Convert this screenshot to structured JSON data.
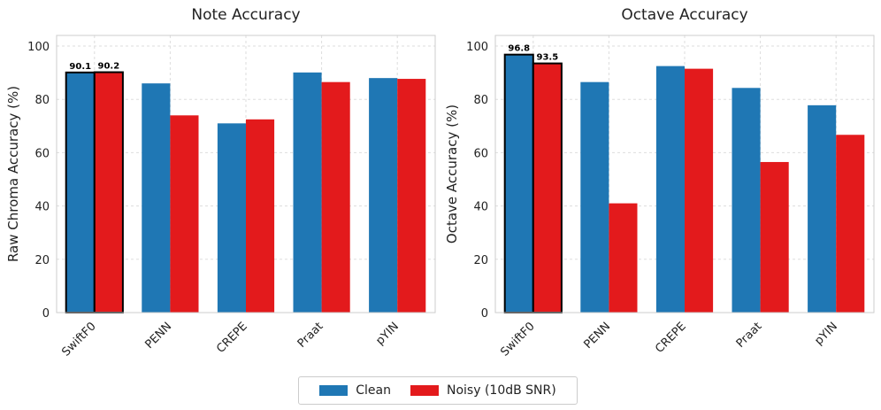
{
  "colors": {
    "clean": "#1f77b4",
    "noisy": "#e31a1c",
    "grid": "#dddddd",
    "frame": "#cccccc",
    "highlight": "#000000"
  },
  "legend": {
    "placement": "bottom-center",
    "clean_label": "Clean",
    "noisy_label": "Noisy (10dB SNR)"
  },
  "chart_data": [
    {
      "type": "bar",
      "title": "Note Accuracy",
      "xlabel": "",
      "ylabel": "Raw Chroma Accuracy (%)",
      "ylim": [
        0,
        104
      ],
      "yticks": [
        0,
        20,
        40,
        60,
        80,
        100
      ],
      "grid": true,
      "categories": [
        "SwiftF0",
        "PENN",
        "CREPE",
        "Praat",
        "pYIN"
      ],
      "highlighted_category": "SwiftF0",
      "series": [
        {
          "name": "Clean",
          "values": [
            90.1,
            86.0,
            71.0,
            90.1,
            88.0
          ]
        },
        {
          "name": "Noisy (10dB SNR)",
          "values": [
            90.2,
            74.0,
            72.5,
            86.5,
            87.7
          ]
        }
      ],
      "data_labels": [
        {
          "category": "SwiftF0",
          "series": "Clean",
          "text": "90.1"
        },
        {
          "category": "SwiftF0",
          "series": "Noisy (10dB SNR)",
          "text": "90.2"
        }
      ]
    },
    {
      "type": "bar",
      "title": "Octave Accuracy",
      "xlabel": "",
      "ylabel": "Octave Accuracy (%)",
      "ylim": [
        0,
        104
      ],
      "yticks": [
        0,
        20,
        40,
        60,
        80,
        100
      ],
      "grid": true,
      "categories": [
        "SwiftF0",
        "PENN",
        "CREPE",
        "Praat",
        "pYIN"
      ],
      "highlighted_category": "SwiftF0",
      "series": [
        {
          "name": "Clean",
          "values": [
            96.8,
            86.5,
            92.5,
            84.3,
            77.8
          ]
        },
        {
          "name": "Noisy (10dB SNR)",
          "values": [
            93.5,
            41.0,
            91.5,
            56.5,
            66.7
          ]
        }
      ],
      "data_labels": [
        {
          "category": "SwiftF0",
          "series": "Clean",
          "text": "96.8"
        },
        {
          "category": "SwiftF0",
          "series": "Noisy (10dB SNR)",
          "text": "93.5"
        }
      ]
    }
  ]
}
